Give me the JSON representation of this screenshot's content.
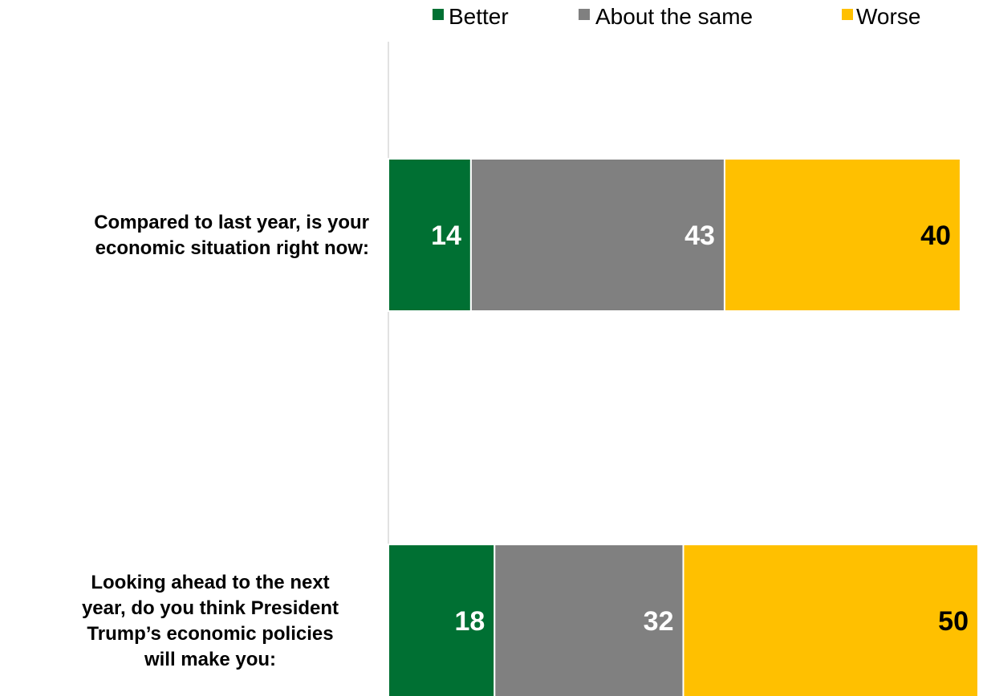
{
  "chart_data": {
    "type": "bar",
    "orientation": "horizontal",
    "stacked": true,
    "categories": [
      "Compared to last year, is your economic situation right now:",
      "Looking ahead to the next year, do you think President Trump’s economic policies will make you:"
    ],
    "category_lines": [
      [
        "Compared to last year, is your",
        "economic situation right now:"
      ],
      [
        "Looking ahead to the next",
        "year, do you think President",
        "Trump’s economic policies",
        "will make you:"
      ]
    ],
    "series": [
      {
        "name": "Better",
        "values": [
          14,
          18
        ],
        "color": "#007033",
        "label_color": "#ffffff"
      },
      {
        "name": "About the same",
        "values": [
          43,
          32
        ],
        "color": "#808080",
        "label_color": "#ffffff"
      },
      {
        "name": "Worse",
        "values": [
          40,
          50
        ],
        "color": "#ffc000",
        "label_color": "#000000"
      }
    ],
    "xlim": [
      0,
      100
    ],
    "grid": false,
    "legend": "top"
  }
}
